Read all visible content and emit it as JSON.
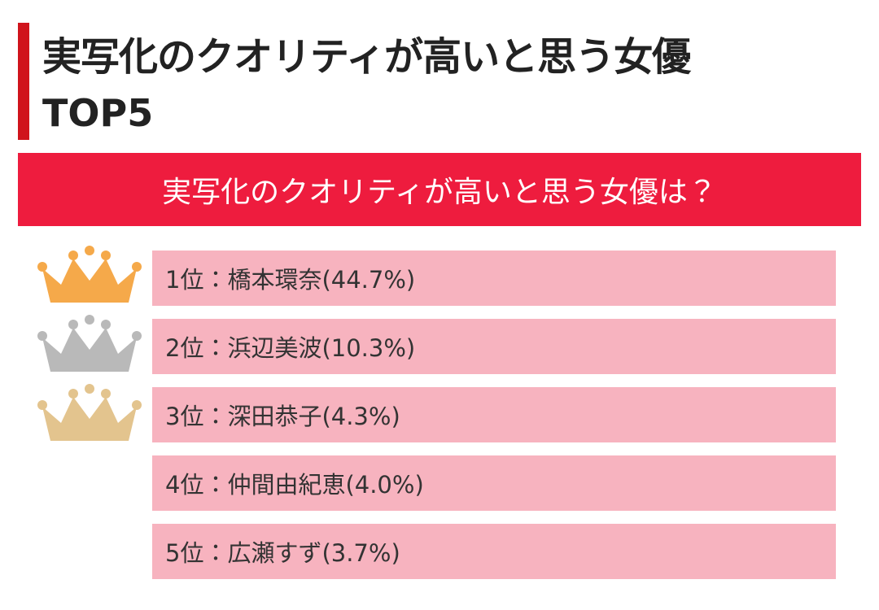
{
  "header": {
    "title": "実写化のクオリティが高いと思う女優",
    "subtitle": "TOP5"
  },
  "banner": "実写化のクオリティが高いと思う女優は？",
  "items": [
    "1位：橋本環奈(44.7%)",
    "2位：浜辺美波(10.3%)",
    "3位：深田恭子(4.3%)",
    "4位：仲間由紀恵(4.0%)",
    "5位：広瀬すず(3.7%)"
  ]
}
